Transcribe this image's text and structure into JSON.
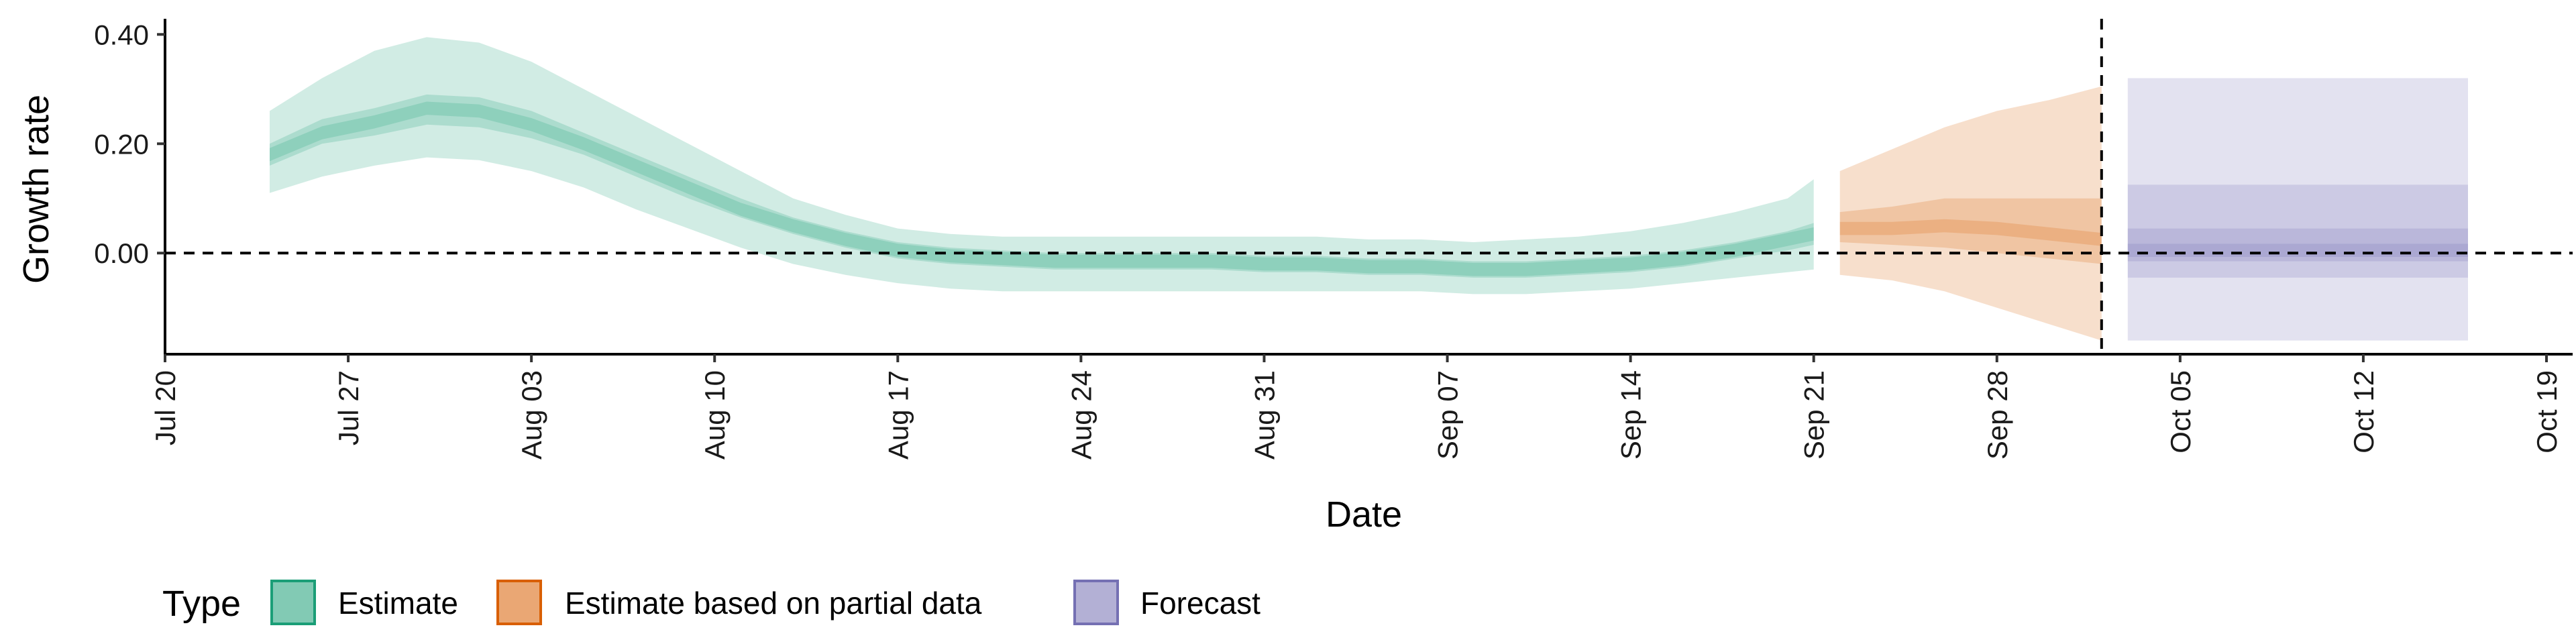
{
  "chart_data": {
    "type": "area",
    "xlabel": "Date",
    "ylabel": "Growth rate",
    "x_ticks": [
      "Jul 20",
      "Jul 27",
      "Aug 03",
      "Aug 10",
      "Aug 17",
      "Aug 24",
      "Aug 31",
      "Sep 07",
      "Sep 14",
      "Sep 21",
      "Sep 28",
      "Oct 05",
      "Oct 12",
      "Oct 19"
    ],
    "x_tick_dates": [
      "2020-07-20",
      "2020-07-27",
      "2020-08-03",
      "2020-08-10",
      "2020-08-17",
      "2020-08-24",
      "2020-08-31",
      "2020-09-07",
      "2020-09-14",
      "2020-09-21",
      "2020-09-28",
      "2020-10-05",
      "2020-10-12",
      "2020-10-19"
    ],
    "y_ticks": [
      "0.00",
      "0.20",
      "0.40"
    ],
    "y_tick_values": [
      0,
      0.2,
      0.4
    ],
    "xlim": [
      "2020-07-20",
      "2020-10-20"
    ],
    "ylim": [
      -0.185,
      0.42
    ],
    "reference_lines": {
      "horizontal_y": 0,
      "vertical_date": "2020-10-02"
    },
    "legend": {
      "title": "Type",
      "position": "bottom-left",
      "entries": [
        "Estimate",
        "Estimate based on partial data",
        "Forecast"
      ]
    },
    "colors": {
      "Estimate": "#1b9e77",
      "Estimate based on partial data": "#d95f02",
      "Forecast": "#7570b3"
    },
    "series": [
      {
        "name": "Estimate",
        "dates": [
          "2020-07-24",
          "2020-07-26",
          "2020-07-28",
          "2020-07-30",
          "2020-08-01",
          "2020-08-03",
          "2020-08-05",
          "2020-08-07",
          "2020-08-09",
          "2020-08-11",
          "2020-08-13",
          "2020-08-15",
          "2020-08-17",
          "2020-08-19",
          "2020-08-21",
          "2020-08-23",
          "2020-08-25",
          "2020-08-27",
          "2020-08-29",
          "2020-08-31",
          "2020-09-02",
          "2020-09-04",
          "2020-09-06",
          "2020-09-08",
          "2020-09-10",
          "2020-09-12",
          "2020-09-14",
          "2020-09-16",
          "2020-09-18",
          "2020-09-20",
          "2020-09-21"
        ],
        "median": [
          0.18,
          0.22,
          0.24,
          0.265,
          0.26,
          0.235,
          0.2,
          0.16,
          0.12,
          0.08,
          0.05,
          0.025,
          0.005,
          -0.005,
          -0.01,
          -0.015,
          -0.015,
          -0.015,
          -0.015,
          -0.02,
          -0.02,
          -0.025,
          -0.025,
          -0.03,
          -0.03,
          -0.025,
          -0.02,
          -0.01,
          0.005,
          0.025,
          0.035
        ],
        "lower50": [
          0.16,
          0.2,
          0.215,
          0.235,
          0.23,
          0.21,
          0.18,
          0.14,
          0.1,
          0.065,
          0.035,
          0.01,
          -0.01,
          -0.02,
          -0.025,
          -0.03,
          -0.03,
          -0.03,
          -0.03,
          -0.035,
          -0.035,
          -0.04,
          -0.04,
          -0.045,
          -0.045,
          -0.04,
          -0.035,
          -0.025,
          -0.01,
          0.005,
          0.015
        ],
        "upper50": [
          0.2,
          0.245,
          0.265,
          0.29,
          0.285,
          0.26,
          0.22,
          0.18,
          0.14,
          0.1,
          0.065,
          0.04,
          0.02,
          0.01,
          0.005,
          0.0,
          0.0,
          0.0,
          0.0,
          -0.005,
          -0.005,
          -0.01,
          -0.01,
          -0.015,
          -0.015,
          -0.01,
          -0.005,
          0.005,
          0.02,
          0.04,
          0.055
        ],
        "lower90": [
          0.11,
          0.14,
          0.16,
          0.175,
          0.17,
          0.15,
          0.12,
          0.08,
          0.045,
          0.01,
          -0.02,
          -0.04,
          -0.055,
          -0.065,
          -0.07,
          -0.07,
          -0.07,
          -0.07,
          -0.07,
          -0.07,
          -0.07,
          -0.07,
          -0.07,
          -0.075,
          -0.075,
          -0.07,
          -0.065,
          -0.055,
          -0.045,
          -0.035,
          -0.03
        ],
        "upper90": [
          0.26,
          0.32,
          0.37,
          0.395,
          0.385,
          0.35,
          0.3,
          0.25,
          0.2,
          0.15,
          0.1,
          0.07,
          0.045,
          0.035,
          0.03,
          0.03,
          0.03,
          0.03,
          0.03,
          0.03,
          0.03,
          0.025,
          0.025,
          0.02,
          0.025,
          0.03,
          0.04,
          0.055,
          0.075,
          0.1,
          0.135
        ]
      },
      {
        "name": "Estimate based on partial data",
        "dates": [
          "2020-09-22",
          "2020-09-24",
          "2020-09-26",
          "2020-09-28",
          "2020-09-30",
          "2020-10-02"
        ],
        "median": [
          0.045,
          0.045,
          0.05,
          0.045,
          0.035,
          0.025
        ],
        "lower50": [
          0.02,
          0.015,
          0.01,
          0.0,
          -0.01,
          -0.02
        ],
        "upper50": [
          0.075,
          0.085,
          0.1,
          0.1,
          0.1,
          0.1
        ],
        "lower90": [
          -0.04,
          -0.05,
          -0.07,
          -0.1,
          -0.13,
          -0.16
        ],
        "upper90": [
          0.15,
          0.19,
          0.23,
          0.26,
          0.28,
          0.305
        ]
      },
      {
        "name": "Forecast",
        "dates": [
          "2020-10-03",
          "2020-10-16"
        ],
        "median": [
          0.005,
          0.005
        ],
        "lower50": [
          -0.015,
          -0.015
        ],
        "upper50": [
          0.045,
          0.045
        ],
        "lower90": [
          -0.045,
          -0.045
        ],
        "upper90": [
          0.125,
          0.125
        ],
        "lower_outer": [
          -0.16,
          -0.16
        ],
        "upper_outer": [
          0.32,
          0.32
        ]
      }
    ]
  }
}
